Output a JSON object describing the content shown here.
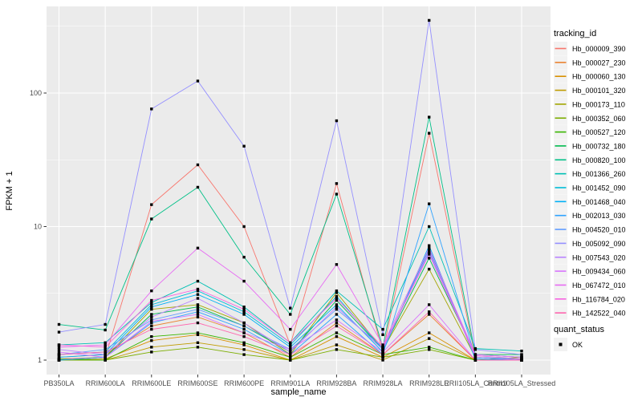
{
  "chart_data": {
    "type": "line",
    "title": "",
    "xlabel": "sample_name",
    "ylabel": "FPKM + 1",
    "y_scale": "log10",
    "y_ticks": [
      1,
      10,
      100
    ],
    "y_minor_ticks": [
      3.162,
      31.62,
      316.2
    ],
    "ylim": [
      0.78,
      450
    ],
    "grid": true,
    "legend_position": "right",
    "legend_title": "tracking_id",
    "point_legend": {
      "title": "quant_status",
      "label": "OK",
      "marker": "black-square"
    },
    "x_categories": [
      "PB350LA",
      "RRIM600LA",
      "RRIM600LE",
      "RRIM600SE",
      "RRIM600PE",
      "RRIM901LA",
      "RRIM928BA",
      "RRIM928LA",
      "RRIM928LE",
      "RRII105LA_Control",
      "RRII105LA_Stressed"
    ],
    "series": [
      {
        "name": "Hb_000009_390",
        "color": "#F8766D",
        "values": [
          1.02,
          1.05,
          14.6,
          29,
          10,
          1.3,
          21,
          1.15,
          50,
          1.05,
          1.0
        ]
      },
      {
        "name": "Hb_000027_230",
        "color": "#EA8331",
        "values": [
          1.05,
          1.1,
          1.8,
          2.1,
          1.6,
          1.05,
          1.9,
          1.1,
          2.2,
          1.0,
          1.0
        ]
      },
      {
        "name": "Hb_000060_130",
        "color": "#D89000",
        "values": [
          1.0,
          1.02,
          1.4,
          1.55,
          1.3,
          1.0,
          1.5,
          1.05,
          1.6,
          1.0,
          1.0
        ]
      },
      {
        "name": "Hb_000101_320",
        "color": "#C09B00",
        "values": [
          1.0,
          1.0,
          1.25,
          1.35,
          1.2,
          1.0,
          1.3,
          1.0,
          1.45,
          1.0,
          1.0
        ]
      },
      {
        "name": "Hb_000173_110",
        "color": "#A3A500",
        "values": [
          1.0,
          1.05,
          2.4,
          2.6,
          1.9,
          1.1,
          3.2,
          1.2,
          4.8,
          1.05,
          1.0
        ]
      },
      {
        "name": "Hb_000352_060",
        "color": "#7CAE00",
        "values": [
          1.0,
          1.0,
          1.15,
          1.25,
          1.1,
          1.0,
          1.2,
          1.05,
          1.2,
          1.0,
          1.05
        ]
      },
      {
        "name": "Hb_000527_120",
        "color": "#39B600",
        "values": [
          1.02,
          1.0,
          1.5,
          1.6,
          1.35,
          1.05,
          1.6,
          1.1,
          1.25,
          1.0,
          1.0
        ]
      },
      {
        "name": "Hb_000732_180",
        "color": "#00BB4E",
        "values": [
          1.0,
          1.05,
          2.2,
          2.5,
          1.8,
          1.15,
          2.8,
          1.2,
          5.8,
          1.1,
          1.1
        ]
      },
      {
        "name": "Hb_000820_100",
        "color": "#00C087",
        "values": [
          1.85,
          1.68,
          11.4,
          19.7,
          5.9,
          2.2,
          17.5,
          1.25,
          66,
          1.1,
          1.05
        ]
      },
      {
        "name": "Hb_001366_260",
        "color": "#00C0B4",
        "values": [
          1.3,
          1.35,
          2.7,
          3.9,
          2.5,
          1.35,
          3.3,
          1.7,
          10,
          1.22,
          1.17
        ]
      },
      {
        "name": "Hb_001452_090",
        "color": "#00BCD8",
        "values": [
          1.1,
          1.15,
          2.6,
          3.3,
          2.3,
          1.3,
          3.0,
          1.2,
          6.8,
          1.05,
          1.02
        ]
      },
      {
        "name": "Hb_001468_040",
        "color": "#00B0F6",
        "values": [
          1.05,
          1.1,
          2.5,
          3.1,
          2.2,
          1.25,
          2.6,
          1.15,
          7.2,
          1.02,
          1.0
        ]
      },
      {
        "name": "Hb_002013_030",
        "color": "#2FA3FF",
        "values": [
          1.0,
          1.05,
          1.9,
          2.3,
          1.7,
          1.1,
          2.2,
          1.1,
          14.8,
          1.05,
          1.0
        ]
      },
      {
        "name": "Hb_004520_010",
        "color": "#619CFF",
        "values": [
          1.1,
          1.2,
          2.0,
          2.4,
          1.8,
          1.2,
          2.4,
          1.25,
          6.4,
          1.1,
          1.05
        ]
      },
      {
        "name": "Hb_005092_090",
        "color": "#9590FF",
        "values": [
          1.62,
          1.85,
          76,
          123,
          40,
          2.45,
          62,
          1.55,
          350,
          1.2,
          1.1
        ]
      },
      {
        "name": "Hb_007543_020",
        "color": "#B983FF",
        "values": [
          1.2,
          1.1,
          2.1,
          2.9,
          1.9,
          1.15,
          2.5,
          1.2,
          6.6,
          1.05,
          1.0
        ]
      },
      {
        "name": "Hb_009434_060",
        "color": "#D874FD",
        "values": [
          1.15,
          1.05,
          1.95,
          2.2,
          1.6,
          1.2,
          2.0,
          1.15,
          2.6,
          1.0,
          1.0
        ]
      },
      {
        "name": "Hb_067472_010",
        "color": "#E76BF3",
        "values": [
          1.25,
          1.3,
          3.3,
          6.9,
          3.9,
          1.7,
          5.2,
          1.3,
          6.9,
          1.1,
          1.05
        ]
      },
      {
        "name": "Hb_116784_020",
        "color": "#F763E0",
        "values": [
          1.3,
          1.25,
          2.8,
          3.4,
          2.4,
          1.35,
          2.9,
          1.25,
          6.2,
          1.08,
          1.02
        ]
      },
      {
        "name": "Hb_142522_040",
        "color": "#FF65AE",
        "values": [
          1.1,
          1.15,
          1.7,
          1.9,
          1.5,
          1.1,
          1.8,
          1.1,
          2.3,
          1.0,
          1.0
        ]
      }
    ]
  },
  "style_colors": {
    "panel_background": "#EBEBEB",
    "gridline": "#FFFFFF",
    "axis_text": "#4D4D4D",
    "tick_mark": "#333333",
    "point": "#000000",
    "legend_key_background": "#F2F2F2",
    "page_background": "#FFFFFF"
  }
}
